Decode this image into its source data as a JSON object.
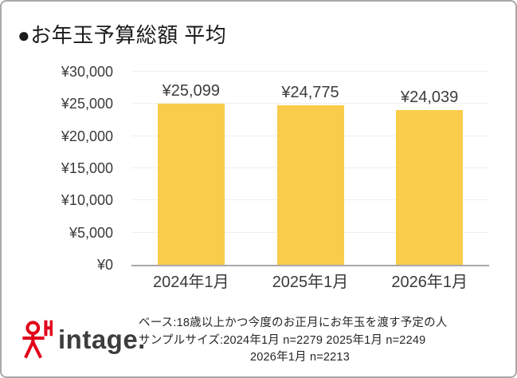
{
  "title": "●お年玉予算総額 平均",
  "chart_data": {
    "type": "bar",
    "title": "お年玉予算総額 平均",
    "categories": [
      "2024年1月",
      "2025年1月",
      "2026年1月"
    ],
    "values": [
      25099,
      24775,
      24039
    ],
    "value_labels": [
      "¥25,099",
      "¥24,775",
      "¥24,039"
    ],
    "xlabel": "",
    "ylabel": "",
    "ylim": [
      0,
      30000
    ],
    "ytick_step": 5000,
    "ytick_labels": [
      "¥0",
      "¥5,000",
      "¥10,000",
      "¥15,000",
      "¥20,000",
      "¥25,000",
      "¥30,000"
    ],
    "grid": true,
    "legend_position": "none",
    "bar_color": "#FACC4B"
  },
  "footer": {
    "logo": {
      "icon": "intage-stamp-icon",
      "text": "intage."
    },
    "notes": [
      "ベース:18歳以上かつ今度のお正月にお年玉を渡す予定の人",
      "サンプルサイズ:2024年1月 n=2279  2025年1月 n=2249",
      "2026年1月 n=2213"
    ]
  },
  "colors": {
    "bar": "#FACC4B",
    "axis_line": "#A8A8A8",
    "gridline": "#F0EFEC",
    "label_text": "#3A3A3A",
    "title_text": "#1B1B1B",
    "logo_red": "#E2001A",
    "logo_gray": "#3D3D3D",
    "frame_border": "#A9A9A9"
  }
}
